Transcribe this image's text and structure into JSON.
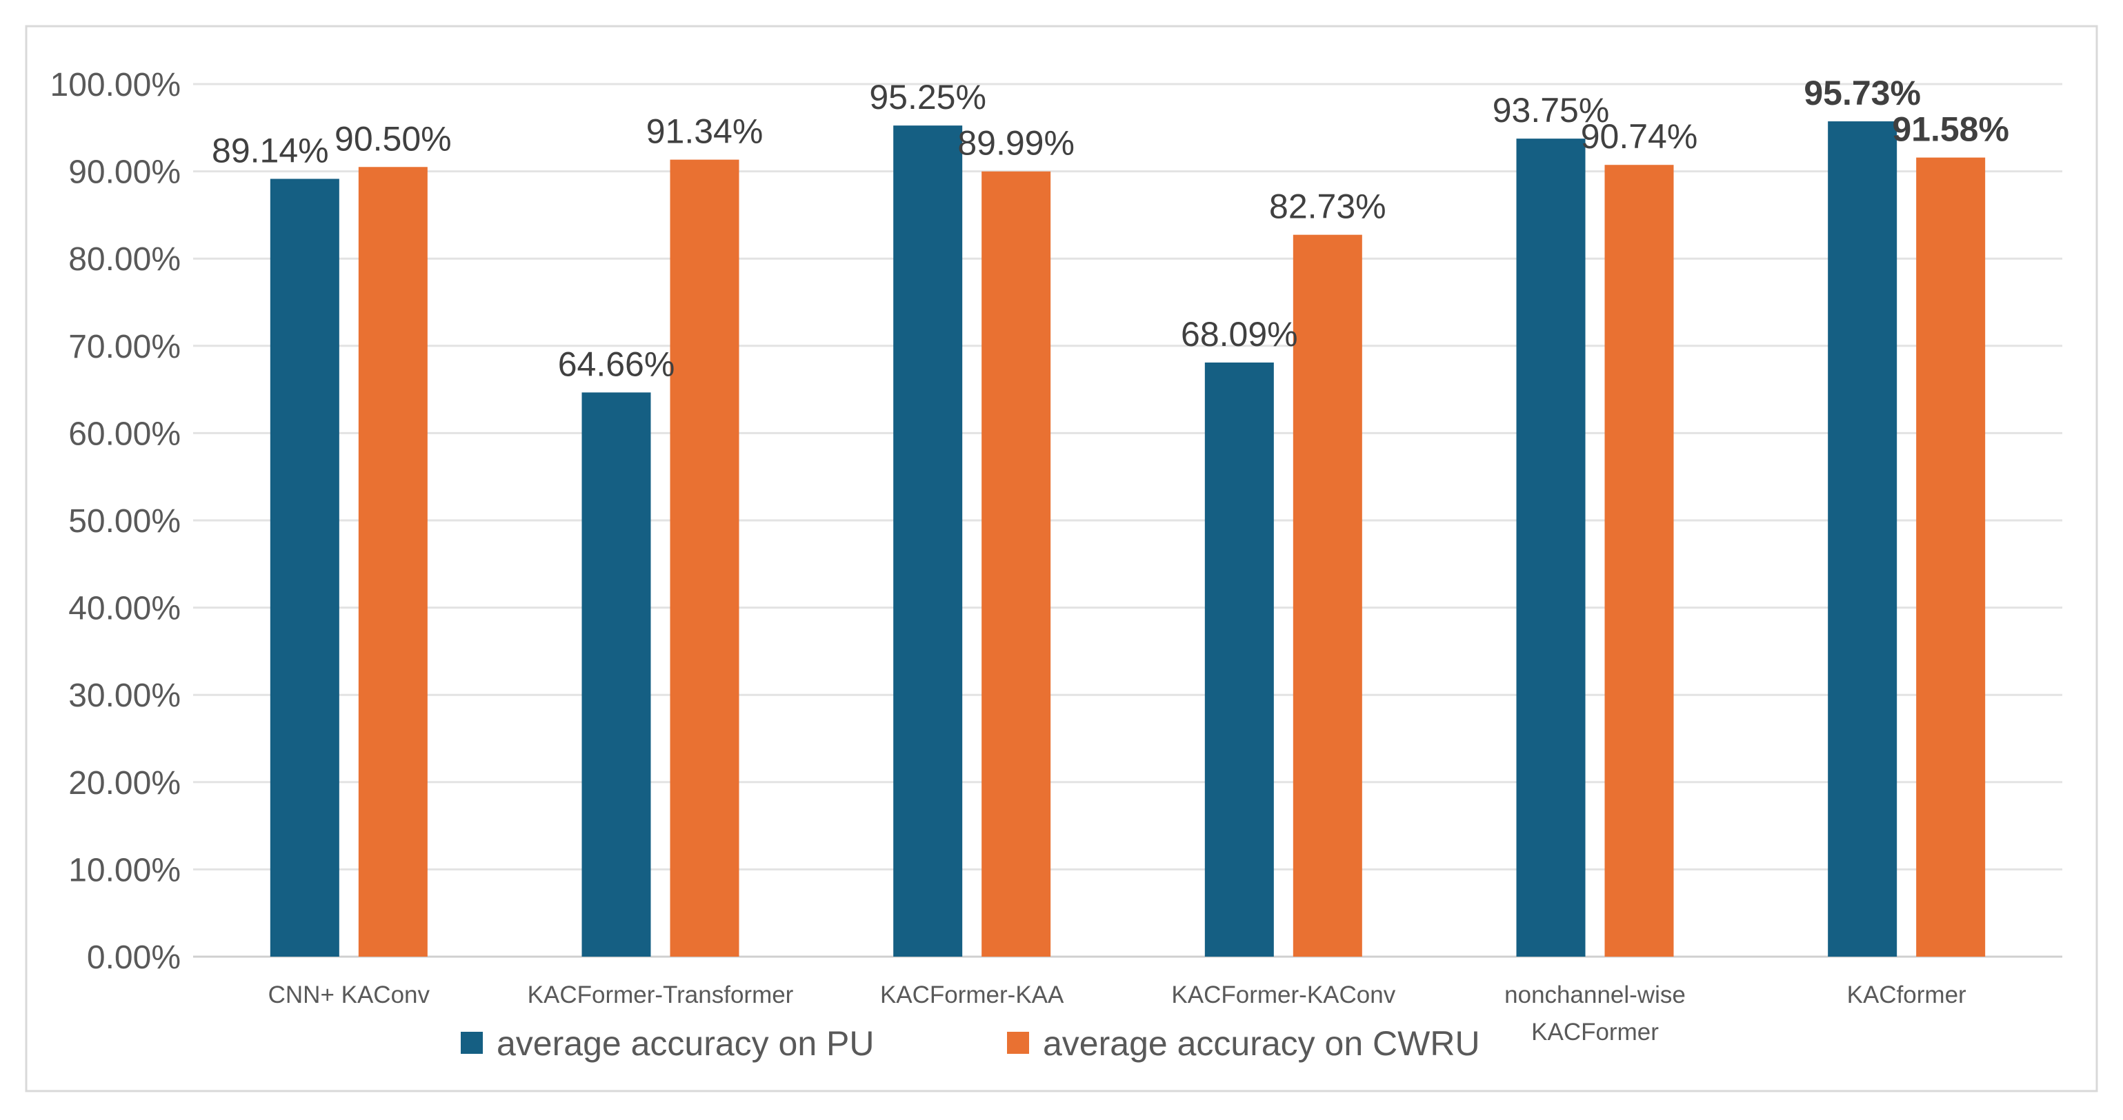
{
  "chart_data": {
    "type": "bar",
    "title": "",
    "xlabel": "",
    "ylabel": "",
    "ylim": [
      0,
      1
    ],
    "y_ticks": [
      0,
      0.1,
      0.2,
      0.3,
      0.4,
      0.5,
      0.6,
      0.7,
      0.8,
      0.9,
      1.0
    ],
    "y_tick_labels": [
      "0.00%",
      "10.00%",
      "20.00%",
      "30.00%",
      "40.00%",
      "50.00%",
      "60.00%",
      "70.00%",
      "80.00%",
      "90.00%",
      "100.00%"
    ],
    "grid": true,
    "legend_position": "bottom",
    "categories": [
      [
        "CNN+ KAConv"
      ],
      [
        "KACFormer-Transformer"
      ],
      [
        "KACFormer-KAA"
      ],
      [
        "KACFormer-KAConv"
      ],
      [
        "nonchannel-wise",
        "KACFormer"
      ],
      [
        "KACformer"
      ]
    ],
    "series": [
      {
        "name": "average accuracy on PU",
        "color": "#155F83",
        "values": [
          0.8914,
          0.6466,
          0.9525,
          0.6809,
          0.9375,
          0.9573
        ],
        "labels": [
          "89.14%",
          "64.66%",
          "95.25%",
          "68.09%",
          "93.75%",
          "95.73%"
        ],
        "bold": [
          false,
          false,
          false,
          false,
          false,
          true
        ]
      },
      {
        "name": "average accuracy on CWRU",
        "color": "#E97132",
        "values": [
          0.905,
          0.9134,
          0.8999,
          0.8273,
          0.9074,
          0.9158
        ],
        "labels": [
          "90.50%",
          "91.34%",
          "89.99%",
          "82.73%",
          "90.74%",
          "91.58%"
        ],
        "bold": [
          false,
          false,
          false,
          false,
          false,
          true
        ]
      }
    ]
  }
}
